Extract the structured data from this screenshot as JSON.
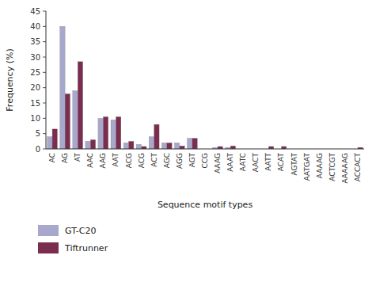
{
  "chart_data": {
    "type": "bar",
    "categories": [
      "AC",
      "AG",
      "AT",
      "AAC",
      "AAG",
      "AAT",
      "ACG",
      "ACG",
      "ACT",
      "AGC",
      "AGG",
      "AGT",
      "CCG",
      "AAAG",
      "AAAT",
      "AATC",
      "AACT",
      "AATT",
      "ACAT",
      "AGTAT",
      "AATGAT",
      "AAAAG",
      "ACTCGT",
      "AAAAAG",
      "ACCACT"
    ],
    "series": [
      {
        "name": "GT-C20",
        "color": "#a8a8cc",
        "values": [
          4,
          40,
          19,
          2.5,
          10,
          9.5,
          2,
          1.5,
          4,
          2,
          2,
          3.5,
          0,
          0.5,
          0.5,
          0,
          0,
          0,
          0,
          0,
          0,
          0,
          0,
          0,
          0
        ]
      },
      {
        "name": "Tiftrunner",
        "color": "#7b2d50",
        "values": [
          6.5,
          18,
          28.5,
          3,
          10.5,
          10.5,
          2.5,
          0.8,
          8,
          2,
          1,
          3.5,
          0,
          0.8,
          1,
          0,
          0,
          0.8,
          0.8,
          0,
          0,
          0,
          0,
          0,
          0.5
        ]
      }
    ],
    "xlabel": "Sequence motif types",
    "ylabel": "Frequency (%)",
    "ylim": [
      0,
      45
    ],
    "yticks": [
      0,
      5,
      10,
      15,
      20,
      25,
      30,
      35,
      40,
      45
    ],
    "legend": "bottom"
  }
}
